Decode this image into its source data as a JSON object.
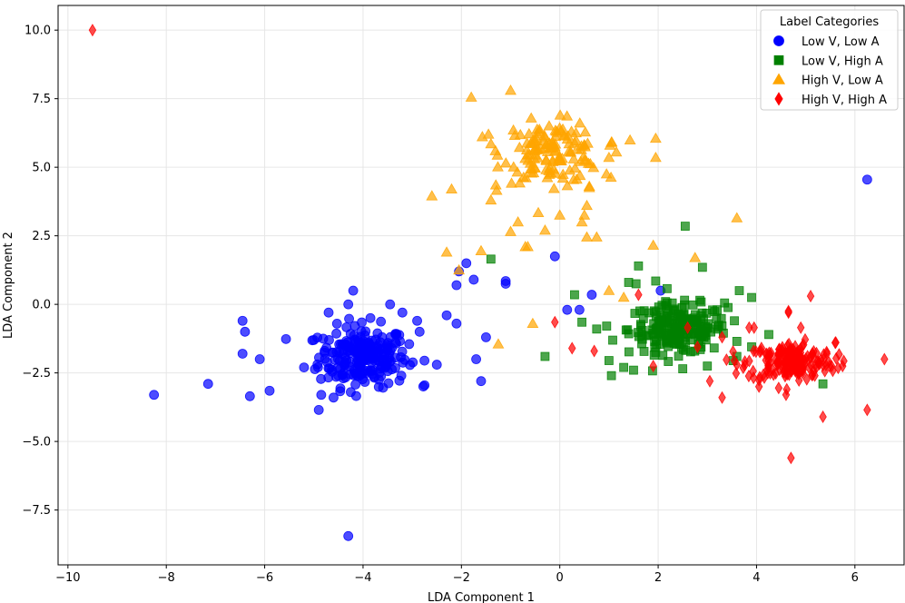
{
  "chart_data": {
    "type": "scatter",
    "title": "",
    "xlabel": "LDA Component 1",
    "ylabel": "LDA Component 2",
    "xlim": [
      -10.2,
      7.0
    ],
    "ylim": [
      -9.5,
      10.9
    ],
    "xticks": [
      -10,
      -8,
      -6,
      -4,
      -2,
      0,
      2,
      4,
      6
    ],
    "xtick_labels": [
      "−10",
      "−8",
      "−6",
      "−4",
      "−2",
      "0",
      "2",
      "4",
      "6"
    ],
    "yticks": [
      -7.5,
      -5.0,
      -2.5,
      0.0,
      2.5,
      5.0,
      7.5,
      10.0
    ],
    "ytick_labels": [
      "−7.5",
      "−5.0",
      "−2.5",
      "0.0",
      "2.5",
      "5.0",
      "7.5",
      "10.0"
    ],
    "grid": true,
    "legend": {
      "title": "Label Categories",
      "location": "top-right"
    },
    "series": [
      {
        "name": "Low V, Low A",
        "marker": "circle",
        "color": "#0000ff",
        "center": [
          -4.0,
          -1.9
        ],
        "count": 230,
        "spread": [
          0.45,
          0.55
        ],
        "points": [
          [
            -8.25,
            -3.3
          ],
          [
            -7.15,
            -2.9
          ],
          [
            -6.45,
            -0.6
          ],
          [
            -6.4,
            -1.0
          ],
          [
            -6.45,
            -1.8
          ],
          [
            -6.1,
            -2.0
          ],
          [
            -6.3,
            -3.35
          ],
          [
            -5.9,
            -3.15
          ],
          [
            -5.2,
            -2.3
          ],
          [
            -5.0,
            -1.3
          ],
          [
            -4.9,
            -3.85
          ],
          [
            -4.85,
            -3.3
          ],
          [
            -4.7,
            -0.3
          ],
          [
            -4.6,
            -3.4
          ],
          [
            -4.3,
            0.0
          ],
          [
            -4.2,
            0.5
          ],
          [
            -4.4,
            -2.7
          ],
          [
            -4.25,
            -3.2
          ],
          [
            -3.85,
            -0.5
          ],
          [
            -3.45,
            0.0
          ],
          [
            -3.2,
            -0.3
          ],
          [
            -2.9,
            -0.6
          ],
          [
            -2.85,
            -1.0
          ],
          [
            -2.75,
            -2.95
          ],
          [
            -2.5,
            -2.2
          ],
          [
            -2.3,
            -0.4
          ],
          [
            -2.1,
            -0.7
          ],
          [
            -2.1,
            0.7
          ],
          [
            -2.05,
            1.2
          ],
          [
            -1.9,
            1.5
          ],
          [
            -1.75,
            0.9
          ],
          [
            -1.6,
            -2.8
          ],
          [
            -1.7,
            -2.0
          ],
          [
            -1.5,
            -1.2
          ],
          [
            -1.1,
            0.85
          ],
          [
            -1.1,
            0.75
          ],
          [
            -0.1,
            1.75
          ],
          [
            0.15,
            -0.2
          ],
          [
            0.4,
            -0.2
          ],
          [
            0.65,
            0.35
          ],
          [
            2.05,
            0.5
          ],
          [
            6.25,
            4.55
          ],
          [
            -4.3,
            -8.45
          ]
        ]
      },
      {
        "name": "Low V, High A",
        "marker": "square",
        "color": "#008000",
        "center": [
          2.4,
          -0.9
        ],
        "count": 200,
        "spread": [
          0.5,
          0.45
        ],
        "points": [
          [
            -1.4,
            1.65
          ],
          [
            0.3,
            0.35
          ],
          [
            -0.3,
            -1.9
          ],
          [
            0.45,
            -0.65
          ],
          [
            0.75,
            -0.9
          ],
          [
            1.05,
            -2.6
          ],
          [
            1.0,
            -2.05
          ],
          [
            1.3,
            -2.3
          ],
          [
            1.5,
            -2.4
          ],
          [
            1.4,
            0.8
          ],
          [
            1.6,
            1.4
          ],
          [
            1.55,
            0.75
          ],
          [
            1.95,
            0.85
          ],
          [
            2.15,
            0.1
          ],
          [
            2.55,
            2.85
          ],
          [
            2.9,
            1.35
          ],
          [
            3.35,
            0.05
          ],
          [
            3.65,
            0.5
          ],
          [
            3.9,
            0.25
          ],
          [
            3.55,
            -0.6
          ],
          [
            3.9,
            -1.55
          ],
          [
            3.6,
            -1.35
          ],
          [
            3.6,
            -1.9
          ],
          [
            3.0,
            -2.25
          ],
          [
            2.5,
            -2.35
          ],
          [
            1.95,
            -1.75
          ],
          [
            5.35,
            -2.9
          ],
          [
            4.25,
            -1.1
          ]
        ]
      },
      {
        "name": "High V, Low A",
        "marker": "triangle",
        "color": "#ffa500",
        "center": [
          -0.15,
          5.55
        ],
        "count": 140,
        "spread": [
          0.5,
          0.55
        ],
        "points": [
          [
            -1.8,
            7.55
          ],
          [
            -1.0,
            7.8
          ],
          [
            -1.45,
            6.2
          ],
          [
            -1.4,
            5.85
          ],
          [
            -2.6,
            3.95
          ],
          [
            -2.2,
            4.2
          ],
          [
            -1.3,
            4.35
          ],
          [
            -1.4,
            3.8
          ],
          [
            -1.0,
            2.65
          ],
          [
            -0.85,
            3.0
          ],
          [
            -0.7,
            2.1
          ],
          [
            -0.65,
            2.1
          ],
          [
            -0.3,
            2.7
          ],
          [
            0.0,
            3.25
          ],
          [
            0.45,
            3.0
          ],
          [
            0.55,
            3.6
          ],
          [
            0.5,
            3.25
          ],
          [
            0.55,
            2.45
          ],
          [
            0.75,
            2.45
          ],
          [
            0.6,
            4.3
          ],
          [
            0.6,
            4.25
          ],
          [
            0.95,
            4.75
          ],
          [
            1.0,
            5.35
          ],
          [
            1.05,
            5.9
          ],
          [
            1.15,
            5.55
          ],
          [
            1.95,
            6.05
          ],
          [
            1.95,
            5.35
          ],
          [
            1.9,
            2.15
          ],
          [
            2.75,
            1.7
          ],
          [
            3.6,
            3.15
          ],
          [
            1.0,
            0.5
          ],
          [
            -2.3,
            1.9
          ],
          [
            -2.05,
            1.25
          ],
          [
            -1.6,
            1.95
          ],
          [
            -1.25,
            -1.45
          ],
          [
            -0.55,
            -0.7
          ],
          [
            1.3,
            0.25
          ]
        ]
      },
      {
        "name": "High V, High A",
        "marker": "diamond",
        "color": "#ff0000",
        "center": [
          4.7,
          -2.1
        ],
        "count": 190,
        "spread": [
          0.45,
          0.35
        ],
        "points": [
          [
            -9.5,
            10.0
          ],
          [
            -0.1,
            -0.65
          ],
          [
            0.25,
            -1.6
          ],
          [
            0.7,
            -1.7
          ],
          [
            1.6,
            0.35
          ],
          [
            1.9,
            -2.25
          ],
          [
            2.6,
            -0.85
          ],
          [
            2.8,
            -1.55
          ],
          [
            3.3,
            -1.2
          ],
          [
            3.05,
            -2.8
          ],
          [
            3.3,
            -3.4
          ],
          [
            3.85,
            -0.85
          ],
          [
            3.95,
            -0.85
          ],
          [
            4.65,
            -0.3
          ],
          [
            4.65,
            -0.25
          ],
          [
            4.9,
            -0.85
          ],
          [
            5.1,
            0.3
          ],
          [
            4.05,
            -3.0
          ],
          [
            4.45,
            -3.05
          ],
          [
            4.6,
            -3.3
          ],
          [
            5.35,
            -4.1
          ],
          [
            4.7,
            -5.6
          ],
          [
            6.25,
            -3.85
          ],
          [
            6.6,
            -2.0
          ],
          [
            5.6,
            -1.4
          ],
          [
            5.75,
            -2.25
          ],
          [
            3.6,
            -2.2
          ],
          [
            3.55,
            -2.05
          ]
        ]
      }
    ]
  }
}
